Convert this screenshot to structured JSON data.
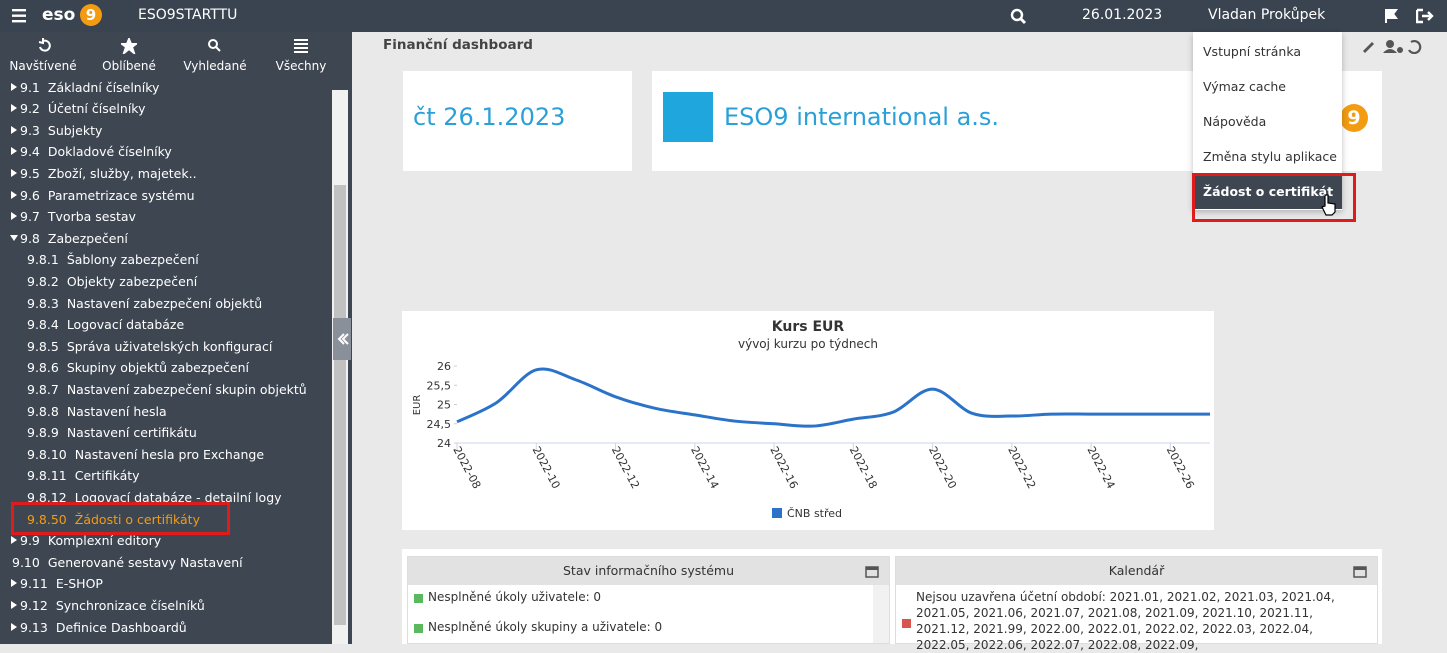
{
  "topbar": {
    "logo": "eso",
    "logo_mark": "9",
    "app": "ESO9STARTTU",
    "date": "26.01.2023",
    "user": "Vladan Prokůpek"
  },
  "sidebar": {
    "tabs": [
      "Navštívené",
      "Oblíbené",
      "Vyhledané",
      "Všechny"
    ],
    "active_tab": 3,
    "selected": 20,
    "items": [
      {
        "number": "9.1",
        "label": "Základní číselníky",
        "level": 1,
        "toggle": "collapsed"
      },
      {
        "number": "9.2",
        "label": "Účetní číselníky",
        "level": 1,
        "toggle": "collapsed"
      },
      {
        "number": "9.3",
        "label": "Subjekty",
        "level": 1,
        "toggle": "collapsed"
      },
      {
        "number": "9.4",
        "label": "Dokladové číselníky",
        "level": 1,
        "toggle": "collapsed"
      },
      {
        "number": "9.5",
        "label": "Zboží, služby, majetek..",
        "level": 1,
        "toggle": "collapsed"
      },
      {
        "number": "9.6",
        "label": "Parametrizace systému",
        "level": 1,
        "toggle": "collapsed"
      },
      {
        "number": "9.7",
        "label": "Tvorba sestav",
        "level": 1,
        "toggle": "collapsed"
      },
      {
        "number": "9.8",
        "label": "Zabezpečení",
        "level": 1,
        "toggle": "expanded"
      },
      {
        "number": "9.8.1",
        "label": "Šablony zabezpečení",
        "level": 2
      },
      {
        "number": "9.8.2",
        "label": "Objekty zabezpečení",
        "level": 2
      },
      {
        "number": "9.8.3",
        "label": "Nastavení zabezpečení objektů",
        "level": 2
      },
      {
        "number": "9.8.4",
        "label": "Logovací databáze",
        "level": 2
      },
      {
        "number": "9.8.5",
        "label": "Správa uživatelských konfigurací",
        "level": 2
      },
      {
        "number": "9.8.6",
        "label": "Skupiny objektů zabezpečení",
        "level": 2
      },
      {
        "number": "9.8.7",
        "label": "Nastavení zabezpečení skupin objektů",
        "level": 2
      },
      {
        "number": "9.8.8",
        "label": "Nastavení hesla",
        "level": 2
      },
      {
        "number": "9.8.9",
        "label": "Nastavení certifikátu",
        "level": 2
      },
      {
        "number": "9.8.10",
        "label": "Nastavení hesla pro Exchange",
        "level": 2
      },
      {
        "number": "9.8.11",
        "label": "Certifikáty",
        "level": 2
      },
      {
        "number": "9.8.12",
        "label": "Logovací databáze - detailní logy",
        "level": 2
      },
      {
        "number": "9.8.50",
        "label": "Žádosti o certifikáty",
        "level": 2
      },
      {
        "number": "9.9",
        "label": "Komplexní editory",
        "level": 1,
        "toggle": "collapsed"
      },
      {
        "number": "9.10",
        "label": "Generované sestavy Nastavení",
        "level": 1
      },
      {
        "number": "9.11",
        "label": "E-SHOP",
        "level": 1,
        "toggle": "collapsed"
      },
      {
        "number": "9.12",
        "label": "Synchronizace číselníků",
        "level": 1,
        "toggle": "collapsed"
      },
      {
        "number": "9.13",
        "label": "Definice Dashboardů",
        "level": 1,
        "toggle": "collapsed"
      }
    ]
  },
  "dashboard": {
    "title": "Finanční dashboard",
    "date": "čt 26.1.2023",
    "company": "ESO9 international a.s.",
    "logo_mark": "9"
  },
  "menu": {
    "items": [
      "Vstupní stránka",
      "Výmaz cache",
      "Nápověda",
      "Změna stylu aplikace",
      "Žádost o certifikát"
    ],
    "selected": 4
  },
  "chart_data": {
    "type": "line",
    "title": "Kurs EUR",
    "subtitle": "vývoj kurzu po týdnech",
    "y_label": "EUR",
    "categories": [
      "2022-08",
      null,
      "2022-10",
      null,
      "2022-12",
      null,
      "2022-14",
      null,
      "2022-16",
      null,
      "2022-18",
      null,
      "2022-20",
      null,
      "2022-22",
      null,
      "2022-24",
      null,
      "2022-26",
      null
    ],
    "series": [
      {
        "name": "ČNB střed",
        "color": "#2b72c9",
        "values": [
          24.55,
          25.05,
          25.9,
          25.64,
          25.2,
          24.9,
          24.73,
          24.57,
          24.5,
          24.44,
          24.62,
          24.8,
          25.4,
          24.77,
          24.7,
          24.75,
          24.75,
          24.75,
          24.75,
          24.75
        ]
      }
    ],
    "ylim": [
      24,
      26
    ],
    "yticks": [
      24,
      {
        "value": 24.5,
        "label": "24,5"
      },
      25,
      {
        "value": 25.5,
        "label": "25,5"
      },
      26
    ],
    "grid": false,
    "smooth": true,
    "legend": "bottom"
  },
  "panels": [
    {
      "title": "Stav informačního systému",
      "items": [
        {
          "text": "Nesplněné úkoly uživatele: 0",
          "color": "#5cb85c"
        },
        {
          "text": "Nesplněné úkoly skupiny a uživatele: 0",
          "color": "#5cb85c"
        }
      ]
    },
    {
      "title": "Kalendář",
      "items": [
        {
          "text": "Nejsou uzavřena účetní období: 2021.01, 2021.02, 2021.03, 2021.04, 2021.05, 2021.06, 2021.07, 2021.08, 2021.09, 2021.10, 2021.11, 2021.12, 2021.99, 2022.00, 2022.01, 2022.02, 2022.03, 2022.04, 2022.05, 2022.06, 2022.07, 2022.08, 2022.09,",
          "color": "#d9534f"
        }
      ]
    }
  ]
}
